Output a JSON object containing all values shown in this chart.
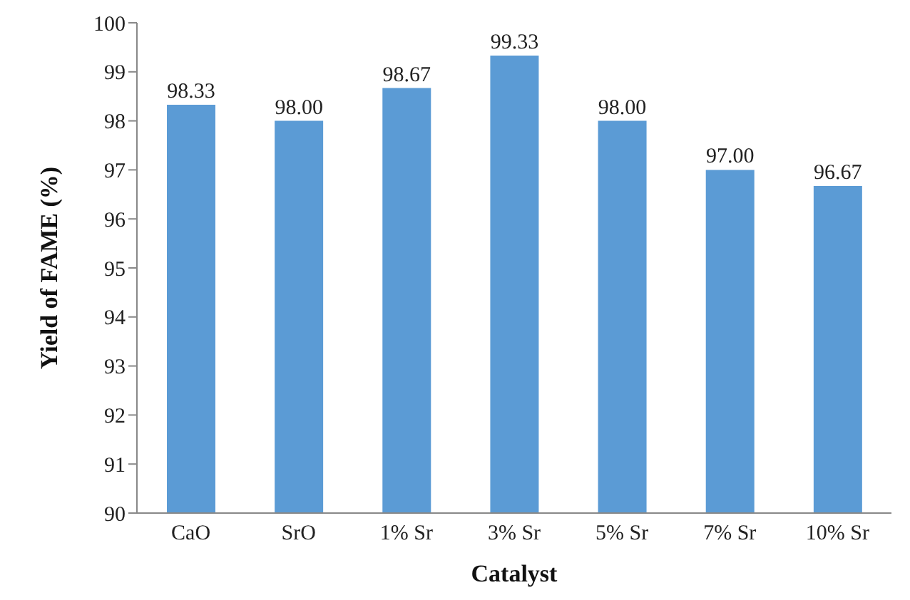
{
  "chart_data": {
    "type": "bar",
    "xlabel": "Catalyst",
    "ylabel": "Yield of FAME (%)",
    "categories": [
      "CaO",
      "SrO",
      "1% Sr",
      "3% Sr",
      "5% Sr",
      "7% Sr",
      "10% Sr"
    ],
    "values": [
      98.33,
      98.0,
      98.67,
      99.33,
      98.0,
      97.0,
      96.67
    ],
    "value_labels": [
      "98.33",
      "98.00",
      "98.67",
      "99.33",
      "98.00",
      "97.00",
      "96.67"
    ],
    "color": "#5b9bd5",
    "ylim": [
      90,
      100
    ],
    "yticks": [
      90,
      91,
      92,
      93,
      94,
      95,
      96,
      97,
      98,
      99,
      100
    ],
    "grid": false,
    "legend": false
  }
}
